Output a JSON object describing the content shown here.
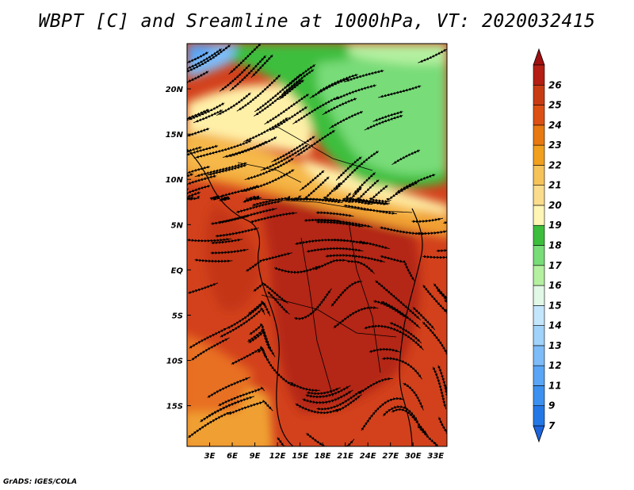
{
  "title": "WBPT [C] and Sreamline at 1000hPa, VT: 2020032415",
  "footer": "GrADS: IGES/COLA",
  "map": {
    "lon_ticks": [
      "3E",
      "6E",
      "9E",
      "12E",
      "15E",
      "18E",
      "21E",
      "24E",
      "27E",
      "30E",
      "33E"
    ],
    "lat_ticks": [
      "20N",
      "15N",
      "10N",
      "5N",
      "EQ",
      "5S",
      "10S",
      "15S"
    ],
    "lon_range": [
      0,
      34.5
    ],
    "lat_range": [
      -19.5,
      25
    ]
  },
  "colorbar": {
    "labels": [
      "7",
      "9",
      "11",
      "12",
      "13",
      "14",
      "15",
      "16",
      "17",
      "18",
      "19",
      "20",
      "21",
      "22",
      "23",
      "24",
      "25",
      "26"
    ],
    "colors": [
      "#1c64dc",
      "#2478e6",
      "#3c91f0",
      "#5aa5f5",
      "#7dbcf8",
      "#a0d2fa",
      "#c3e6fc",
      "#e1f8e6",
      "#b4f0a0",
      "#78dc78",
      "#3cbe3c",
      "#fff5b4",
      "#fadc8c",
      "#f5c35a",
      "#f0a01e",
      "#e87810",
      "#dc5014",
      "#c83c14",
      "#b41e14",
      "#a01010"
    ]
  },
  "legend_colors": {
    "cool_green": "#78dc78",
    "dark_green": "#3cbe3c",
    "pale_yellow": "#fff0a8",
    "orange": "#f0a030",
    "red": "#d2411c",
    "deep_red": "#b42814"
  }
}
